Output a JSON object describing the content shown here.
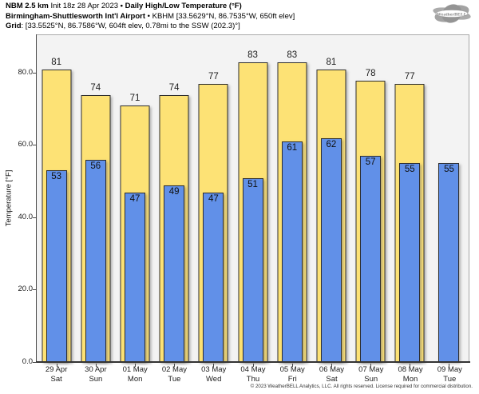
{
  "header": {
    "model": "NBM 2.5 km",
    "init": "Init 18z 28 Apr 2023",
    "product": "• Daily High/Low Temperature (°F)",
    "station_name": "Birmingham-Shuttlesworth Int'l Airport",
    "station_info": "• KBHM [33.5629°N, 86.7535°W, 650ft elev]",
    "grid_label": "Grid",
    "grid_info": ": [33.5525°N, 86.7586°W, 604ft elev, 0.78mi to the SSW (202.3)°]"
  },
  "logo": {
    "text": "WeatherBELL"
  },
  "footer": {
    "copyright": "© 2023 WeatherBELL Analytics, LLC. All rights reserved. License required for commercial distribution."
  },
  "chart_data": {
    "type": "bar",
    "title": "NBM 2.5 km Daily High/Low Temperature (°F) — KBHM Birmingham-Shuttlesworth Int'l Airport",
    "ylabel": "Temperature [°F]",
    "xlabel": "",
    "ylim": [
      0,
      90.5
    ],
    "grid": false,
    "legend": "none",
    "yticks": [
      0,
      20,
      40,
      60,
      80
    ],
    "ytick_labels": [
      "0.0",
      "20.0",
      "40.0",
      "60.0",
      "80.0"
    ],
    "categories": [
      {
        "date": "29 Apr",
        "day": "Sat"
      },
      {
        "date": "30 Apr",
        "day": "Sun"
      },
      {
        "date": "01 May",
        "day": "Mon"
      },
      {
        "date": "02 May",
        "day": "Tue"
      },
      {
        "date": "03 May",
        "day": "Wed"
      },
      {
        "date": "04 May",
        "day": "Thu"
      },
      {
        "date": "05 May",
        "day": "Fri"
      },
      {
        "date": "06 May",
        "day": "Sat"
      },
      {
        "date": "07 May",
        "day": "Sun"
      },
      {
        "date": "08 May",
        "day": "Mon"
      },
      {
        "date": "09 May",
        "day": "Tue"
      }
    ],
    "series": [
      {
        "name": "Daily High",
        "color": "#fde275",
        "values": [
          81,
          74,
          71,
          74,
          77,
          83,
          83,
          81,
          78,
          77,
          null
        ]
      },
      {
        "name": "Daily Low",
        "color": "#6190e8",
        "values": [
          53,
          56,
          47,
          49,
          47,
          51,
          61,
          62,
          57,
          55,
          55
        ]
      }
    ],
    "colors": {
      "high": "#fde275",
      "low": "#6190e8",
      "bar_border": "#2e2e2e",
      "plot_bg": "#f3f3f3",
      "axis": "#444444"
    }
  }
}
